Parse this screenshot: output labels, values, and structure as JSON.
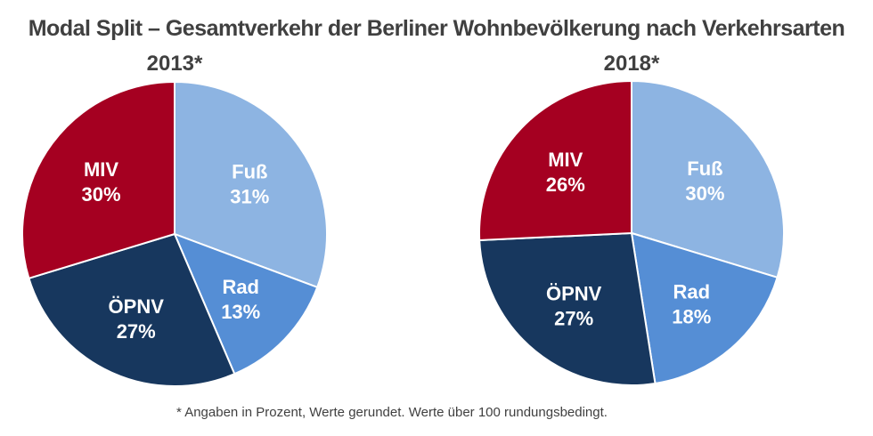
{
  "chart_data": [
    {
      "type": "pie",
      "title": "Modal Split – Gesamtverkehr der Berliner Wohnbevölkerung nach Verkehrsarten",
      "subtitle": "2013*",
      "categories": [
        "Fuß",
        "Rad",
        "ÖPNV",
        "MIV"
      ],
      "values": [
        31,
        13,
        27,
        30
      ],
      "labels": [
        "31%",
        "13%",
        "27%",
        "30%"
      ],
      "colors": [
        "#8DB4E2",
        "#558ED5",
        "#17375E",
        "#A50021"
      ]
    },
    {
      "type": "pie",
      "subtitle": "2018*",
      "categories": [
        "Fuß",
        "Rad",
        "ÖPNV",
        "MIV"
      ],
      "values": [
        30,
        18,
        27,
        26
      ],
      "labels": [
        "30%",
        "18%",
        "27%",
        "26%"
      ],
      "colors": [
        "#8DB4E2",
        "#558ED5",
        "#17375E",
        "#A50021"
      ]
    }
  ],
  "footnote": "* Angaben in Prozent, Werte gerundet. Werte über 100 rundungsbedingt."
}
